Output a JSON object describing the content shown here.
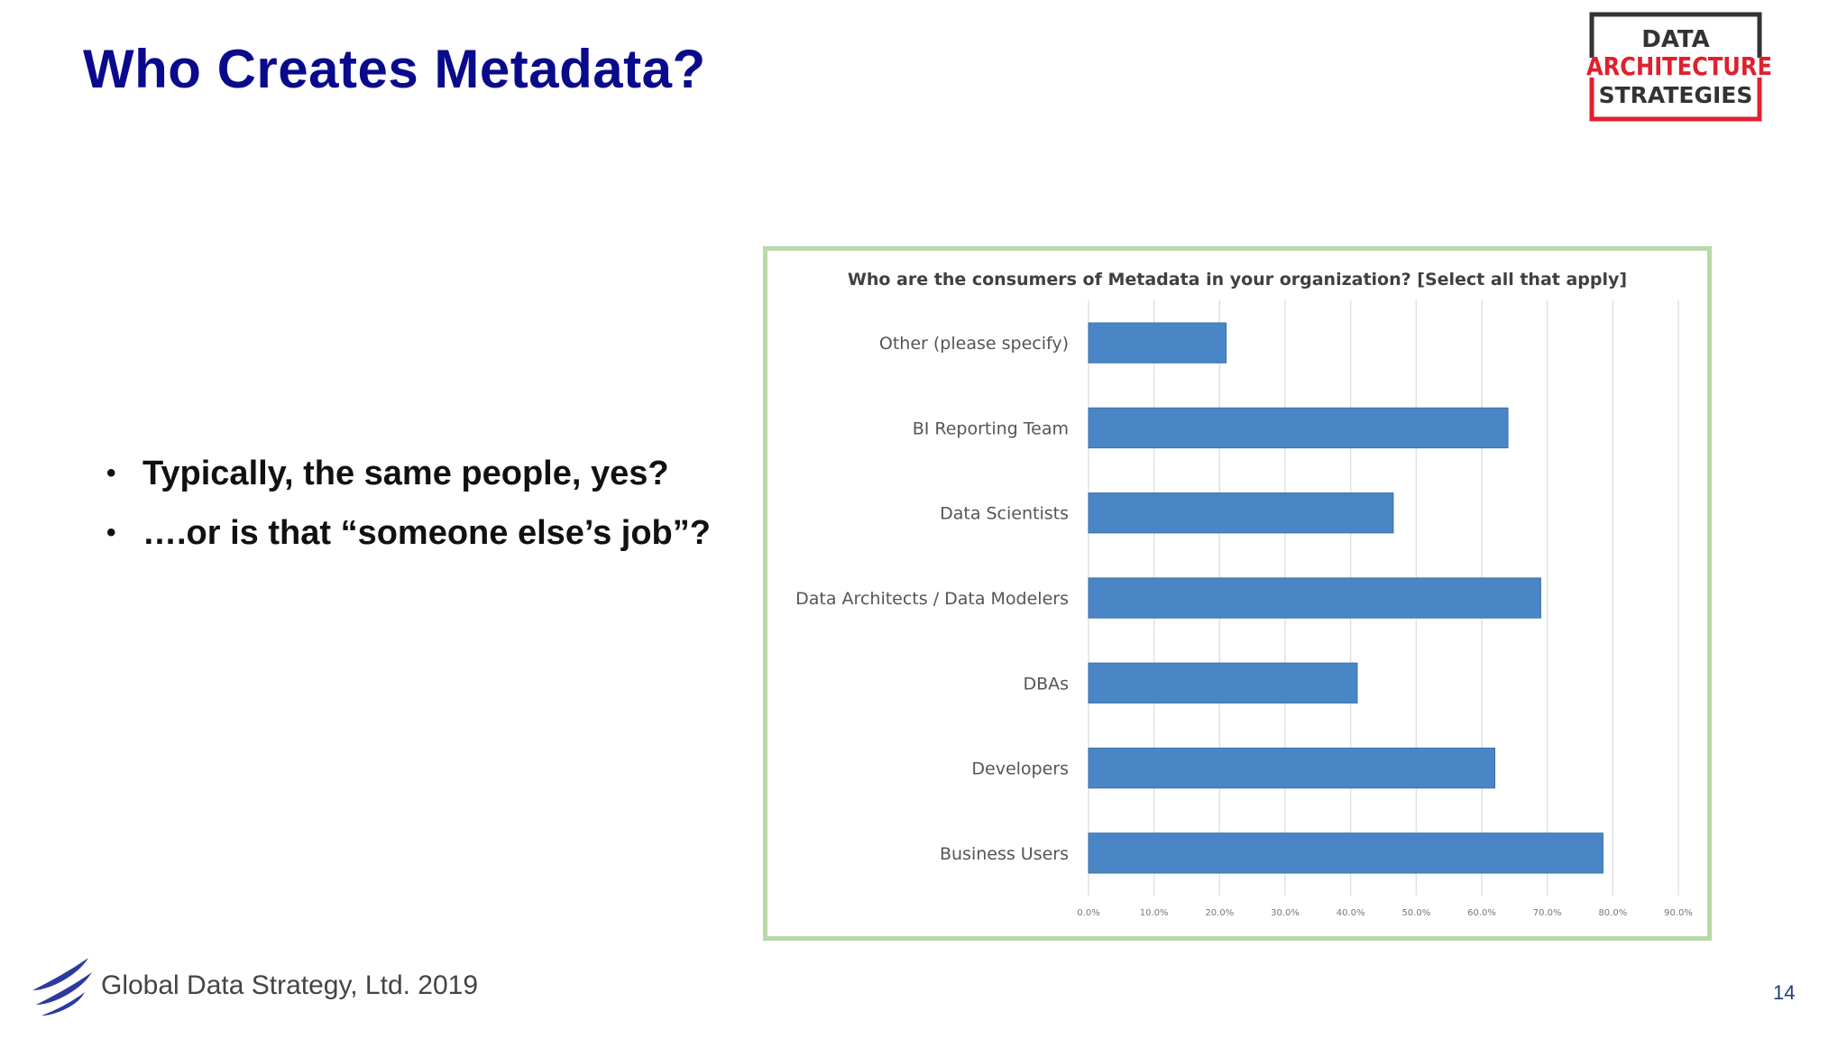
{
  "slide": {
    "title": "Who Creates Metadata?",
    "bullets": [
      "Typically, the same people, yes?",
      "….or is that “someone else’s job”?"
    ],
    "footer": "Global Data Strategy, Ltd. 2019",
    "page_number": "14"
  },
  "logo": {
    "line1": "DATA",
    "line2": "ARCHITECTURE",
    "line3": "STRATEGIES",
    "colors": {
      "frame_dark": "#333333",
      "accent_red": "#e0202e"
    }
  },
  "colors": {
    "title": "#0a0a8c",
    "bar": "#4a86c5",
    "frame": "#b9d9a8"
  },
  "chart_data": {
    "type": "bar",
    "orientation": "horizontal",
    "title": "Who are the consumers of Metadata in your organization?  [Select all that apply]",
    "categories": [
      "Other (please specify)",
      "BI Reporting Team",
      "Data Scientists",
      "Data Architects / Data Modelers",
      "DBAs",
      "Developers",
      "Business Users"
    ],
    "values": [
      21,
      64,
      46.5,
      69,
      41,
      62,
      78.5
    ],
    "xlim": [
      0,
      90
    ],
    "x_ticks": [
      "0.0%",
      "10.0%",
      "20.0%",
      "30.0%",
      "40.0%",
      "50.0%",
      "60.0%",
      "70.0%",
      "80.0%",
      "90.0%"
    ],
    "grid": true,
    "legend": "none"
  }
}
